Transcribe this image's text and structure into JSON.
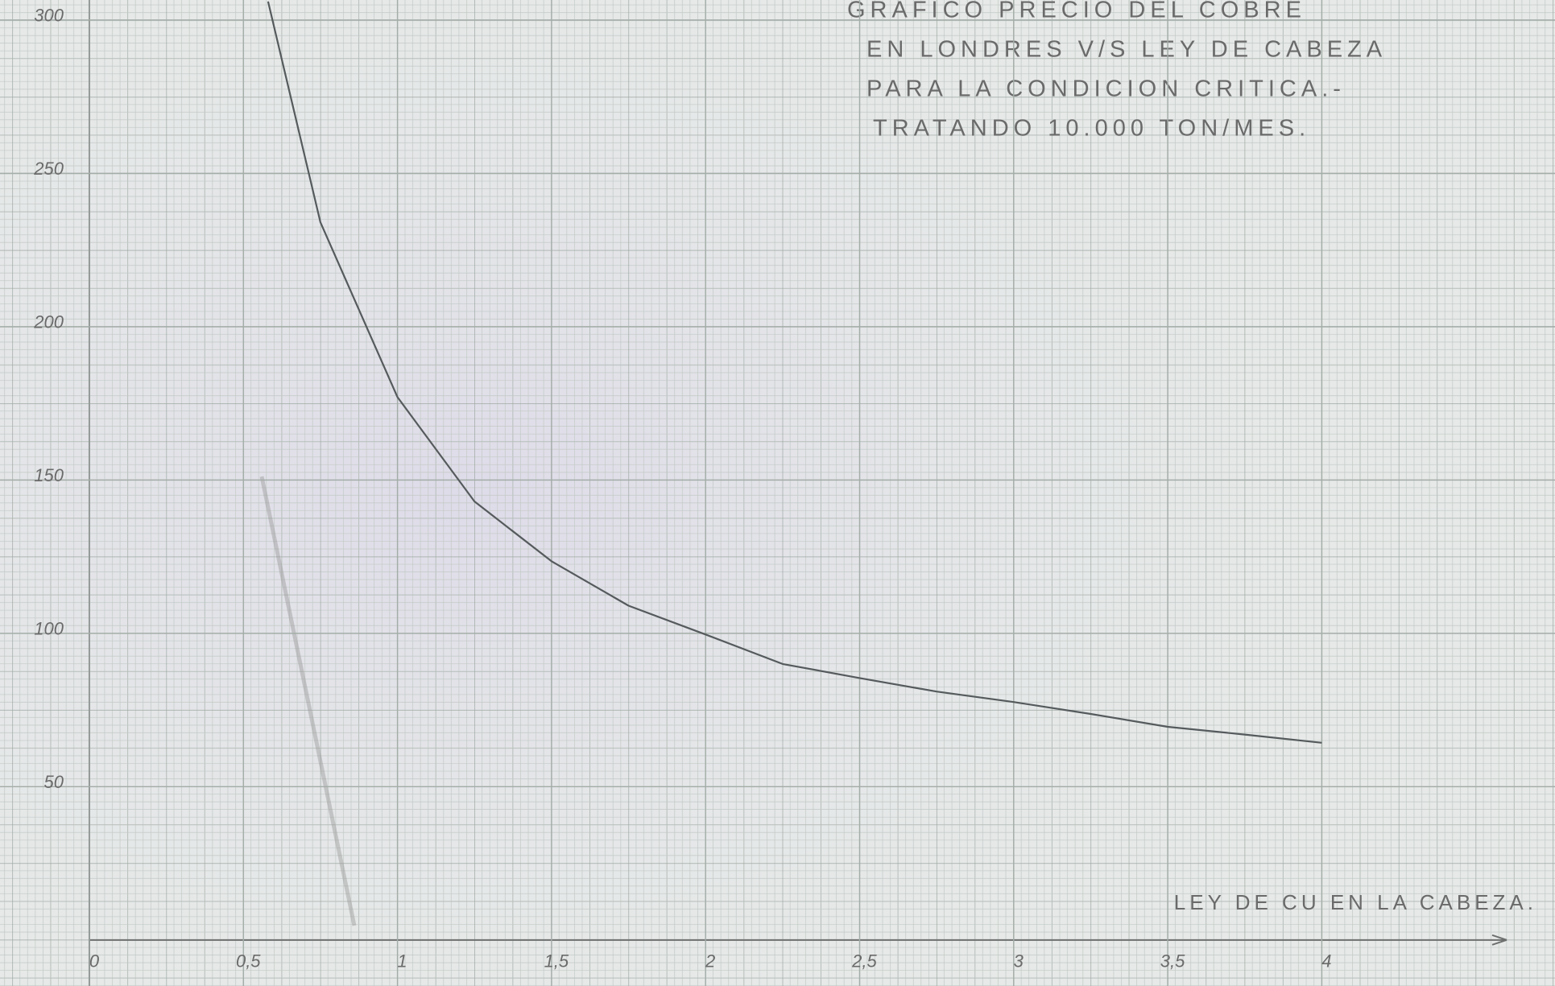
{
  "chart_data": {
    "type": "line",
    "title_lines": [
      "GRAFICO    PRECIO   DEL   COBRE",
      "EN  LONDRES  V/S  LEY  DE  CABEZA",
      "PARA  LA  CONDICION  CRITICA.-",
      "TRATANDO  10.000  TON/MES."
    ],
    "x_label": "LEY  DE  CU EN LA CABEZA.",
    "x": [
      0.58,
      0.75,
      1.0,
      1.25,
      1.5,
      1.75,
      2.0,
      2.25,
      2.5,
      2.75,
      3.0,
      3.25,
      3.5,
      3.75,
      4.0
    ],
    "values": [
      306,
      234,
      177,
      143,
      123.5,
      109,
      99.6,
      90,
      85.4,
      81,
      77.6,
      73.7,
      69.5,
      67,
      64.3
    ],
    "color": "#555a5c",
    "xlim": [
      -0.29,
      4.757
    ],
    "ylim": [
      -15,
      306.5
    ],
    "xticks": [
      0,
      {
        "value": 0.5,
        "label": "0,5"
      },
      1,
      {
        "value": 1.5,
        "label": "1,5"
      },
      2,
      {
        "value": 2.5,
        "label": "2,5"
      },
      3,
      {
        "value": 3.5,
        "label": "3,5"
      },
      4
    ],
    "yticks": [
      50,
      100,
      150,
      200,
      250,
      300
    ],
    "grid": true
  }
}
